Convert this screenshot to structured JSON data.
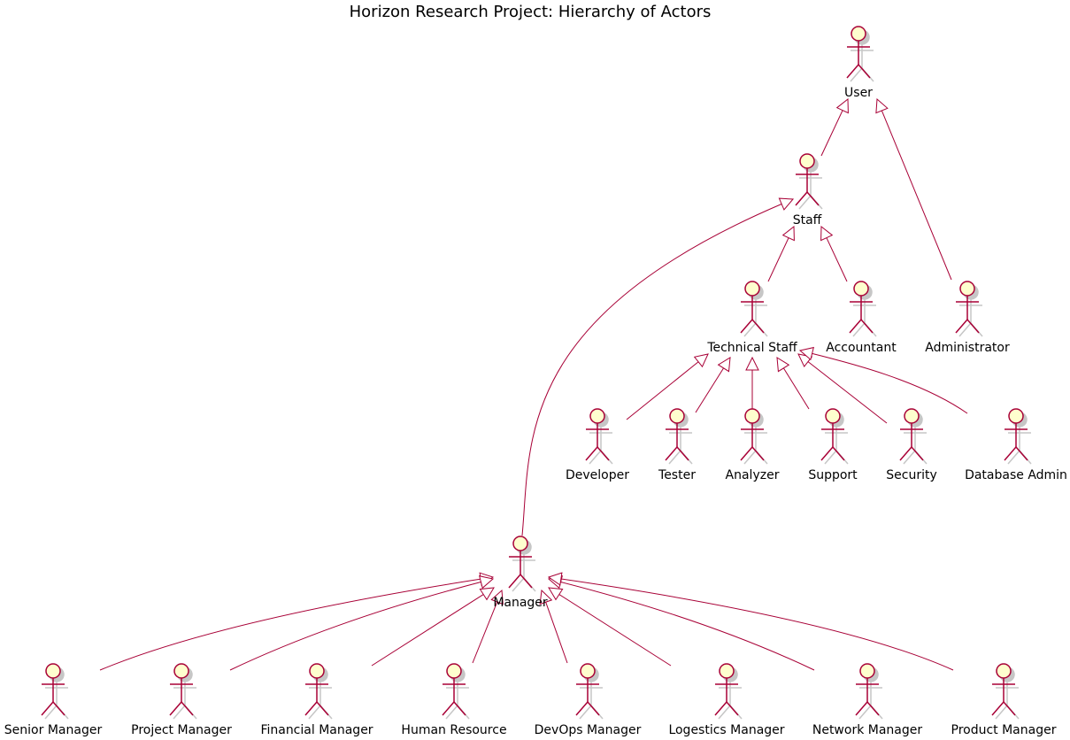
{
  "title": "Horizon Research Project: Hierarchy of Actors",
  "colors": {
    "line": "#A80036",
    "fill": "#FEFECE",
    "arrow_fill": "#FFFFFF",
    "shadow": "#C6C6C6",
    "text": "#000000"
  },
  "actors": [
    {
      "id": "user",
      "label": "User"
    },
    {
      "id": "staff",
      "label": "Staff"
    },
    {
      "id": "technical-staff",
      "label": "Technical Staff"
    },
    {
      "id": "accountant",
      "label": "Accountant"
    },
    {
      "id": "administrator",
      "label": "Administrator"
    },
    {
      "id": "developer",
      "label": "Developer"
    },
    {
      "id": "tester",
      "label": "Tester"
    },
    {
      "id": "analyzer",
      "label": "Analyzer"
    },
    {
      "id": "support",
      "label": "Support"
    },
    {
      "id": "security",
      "label": "Security"
    },
    {
      "id": "database-admin",
      "label": "Database Admin"
    },
    {
      "id": "manager",
      "label": "Manager"
    },
    {
      "id": "senior-manager",
      "label": "Senior Manager"
    },
    {
      "id": "project-manager",
      "label": "Project Manager"
    },
    {
      "id": "financial-manager",
      "label": "Financial Manager"
    },
    {
      "id": "human-resource",
      "label": "Human Resource"
    },
    {
      "id": "devops-manager",
      "label": "DevOps Manager"
    },
    {
      "id": "logestics-manager",
      "label": "Logestics Manager"
    },
    {
      "id": "network-manager",
      "label": "Network Manager"
    },
    {
      "id": "product-manager",
      "label": "Product Manager"
    }
  ],
  "generalizations": [
    {
      "child": "staff",
      "parent": "user"
    },
    {
      "child": "administrator",
      "parent": "user"
    },
    {
      "child": "technical-staff",
      "parent": "staff"
    },
    {
      "child": "accountant",
      "parent": "staff"
    },
    {
      "child": "manager",
      "parent": "staff"
    },
    {
      "child": "developer",
      "parent": "technical-staff"
    },
    {
      "child": "tester",
      "parent": "technical-staff"
    },
    {
      "child": "analyzer",
      "parent": "technical-staff"
    },
    {
      "child": "support",
      "parent": "technical-staff"
    },
    {
      "child": "security",
      "parent": "technical-staff"
    },
    {
      "child": "database-admin",
      "parent": "technical-staff"
    },
    {
      "child": "senior-manager",
      "parent": "manager"
    },
    {
      "child": "project-manager",
      "parent": "manager"
    },
    {
      "child": "financial-manager",
      "parent": "manager"
    },
    {
      "child": "human-resource",
      "parent": "manager"
    },
    {
      "child": "devops-manager",
      "parent": "manager"
    },
    {
      "child": "logestics-manager",
      "parent": "manager"
    },
    {
      "child": "network-manager",
      "parent": "manager"
    },
    {
      "child": "product-manager",
      "parent": "manager"
    }
  ]
}
